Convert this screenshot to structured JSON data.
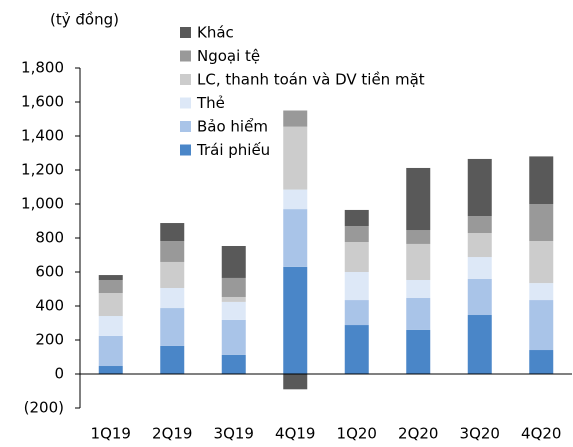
{
  "chart_data": {
    "type": "stacked_bar",
    "y_axis_label": "(tỷ đồng)",
    "categories": [
      "1Q19",
      "2Q19",
      "3Q19",
      "4Q19",
      "1Q20",
      "2Q20",
      "3Q20",
      "4Q20"
    ],
    "series": [
      {
        "name": "Trái phiếu",
        "color": "#4a86c8",
        "values": [
          47,
          165,
          112,
          630,
          288,
          259,
          347,
          141
        ]
      },
      {
        "name": "Bảo hiểm",
        "color": "#a9c4e8",
        "values": [
          177,
          223,
          206,
          340,
          147,
          188,
          212,
          294
        ]
      },
      {
        "name": "Thẻ",
        "color": "#dde8f7",
        "values": [
          117,
          118,
          106,
          115,
          165,
          106,
          129,
          100
        ]
      },
      {
        "name": "LC, thanh toán và DV tiền mặt",
        "color": "#cccccc",
        "values": [
          135,
          153,
          29,
          370,
          176,
          212,
          141,
          247
        ]
      },
      {
        "name": "Ngoại tệ",
        "color": "#999999",
        "values": [
          77,
          123,
          112,
          95,
          94,
          82,
          100,
          218
        ]
      },
      {
        "name": "Khác",
        "color": "#595959",
        "values": [
          29,
          106,
          188,
          -90,
          95,
          365,
          336,
          280
        ]
      }
    ],
    "ylim": [
      -200,
      1800
    ],
    "yticks": [
      {
        "value": -200,
        "label": "(200)"
      },
      0,
      200,
      400,
      600,
      800,
      {
        "value": 1000,
        "label": "1,000"
      },
      {
        "value": 1200,
        "label": "1,200"
      },
      {
        "value": 1400,
        "label": "1,400"
      },
      {
        "value": 1600,
        "label": "1,600"
      },
      {
        "value": 1800,
        "label": "1,800"
      }
    ],
    "grid": false,
    "legend": "top-left"
  }
}
